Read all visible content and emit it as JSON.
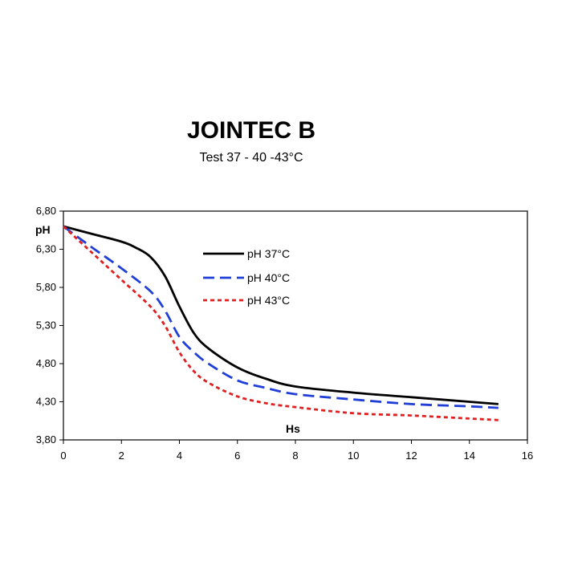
{
  "chart_data": {
    "type": "line",
    "title": "JOINTEC  B",
    "subtitle": "Test 37 - 40 -43°C",
    "xlabel": "Hs",
    "ylabel": "pH",
    "xlim": [
      0,
      16
    ],
    "ylim": [
      3.8,
      6.8
    ],
    "x_ticks": [
      "0",
      "2",
      "4",
      "6",
      "8",
      "10",
      "12",
      "14",
      "16"
    ],
    "y_ticks": [
      "3,80",
      "4,30",
      "4,80",
      "5,30",
      "5,80",
      "6,30",
      "6,80"
    ],
    "grid": false,
    "legend_position": "top-center",
    "series": [
      {
        "name": "pH 37°C",
        "color": "#000000",
        "style": "solid",
        "x": [
          0,
          1,
          2,
          2.5,
          3,
          3.5,
          4,
          4.5,
          5,
          6,
          7,
          8,
          10,
          12,
          14,
          15
        ],
        "y": [
          6.6,
          6.5,
          6.4,
          6.32,
          6.2,
          5.95,
          5.55,
          5.2,
          5.0,
          4.75,
          4.6,
          4.5,
          4.42,
          4.36,
          4.3,
          4.27
        ]
      },
      {
        "name": "pH 40°C",
        "color": "#1f3fd6",
        "style": "dashed",
        "x": [
          0,
          1,
          2,
          3,
          3.5,
          4,
          4.5,
          5,
          6,
          7,
          8,
          10,
          12,
          14,
          15
        ],
        "y": [
          6.6,
          6.32,
          6.05,
          5.75,
          5.5,
          5.15,
          4.95,
          4.8,
          4.58,
          4.48,
          4.4,
          4.33,
          4.27,
          4.24,
          4.22
        ]
      },
      {
        "name": "pH 43°C",
        "color": "#e02020",
        "style": "dotted",
        "x": [
          0,
          1,
          2,
          3,
          3.5,
          4,
          4.5,
          5,
          6,
          7,
          8,
          10,
          12,
          14,
          15
        ],
        "y": [
          6.6,
          6.25,
          5.9,
          5.55,
          5.3,
          4.95,
          4.7,
          4.55,
          4.37,
          4.28,
          4.23,
          4.15,
          4.12,
          4.08,
          4.06
        ]
      }
    ]
  }
}
